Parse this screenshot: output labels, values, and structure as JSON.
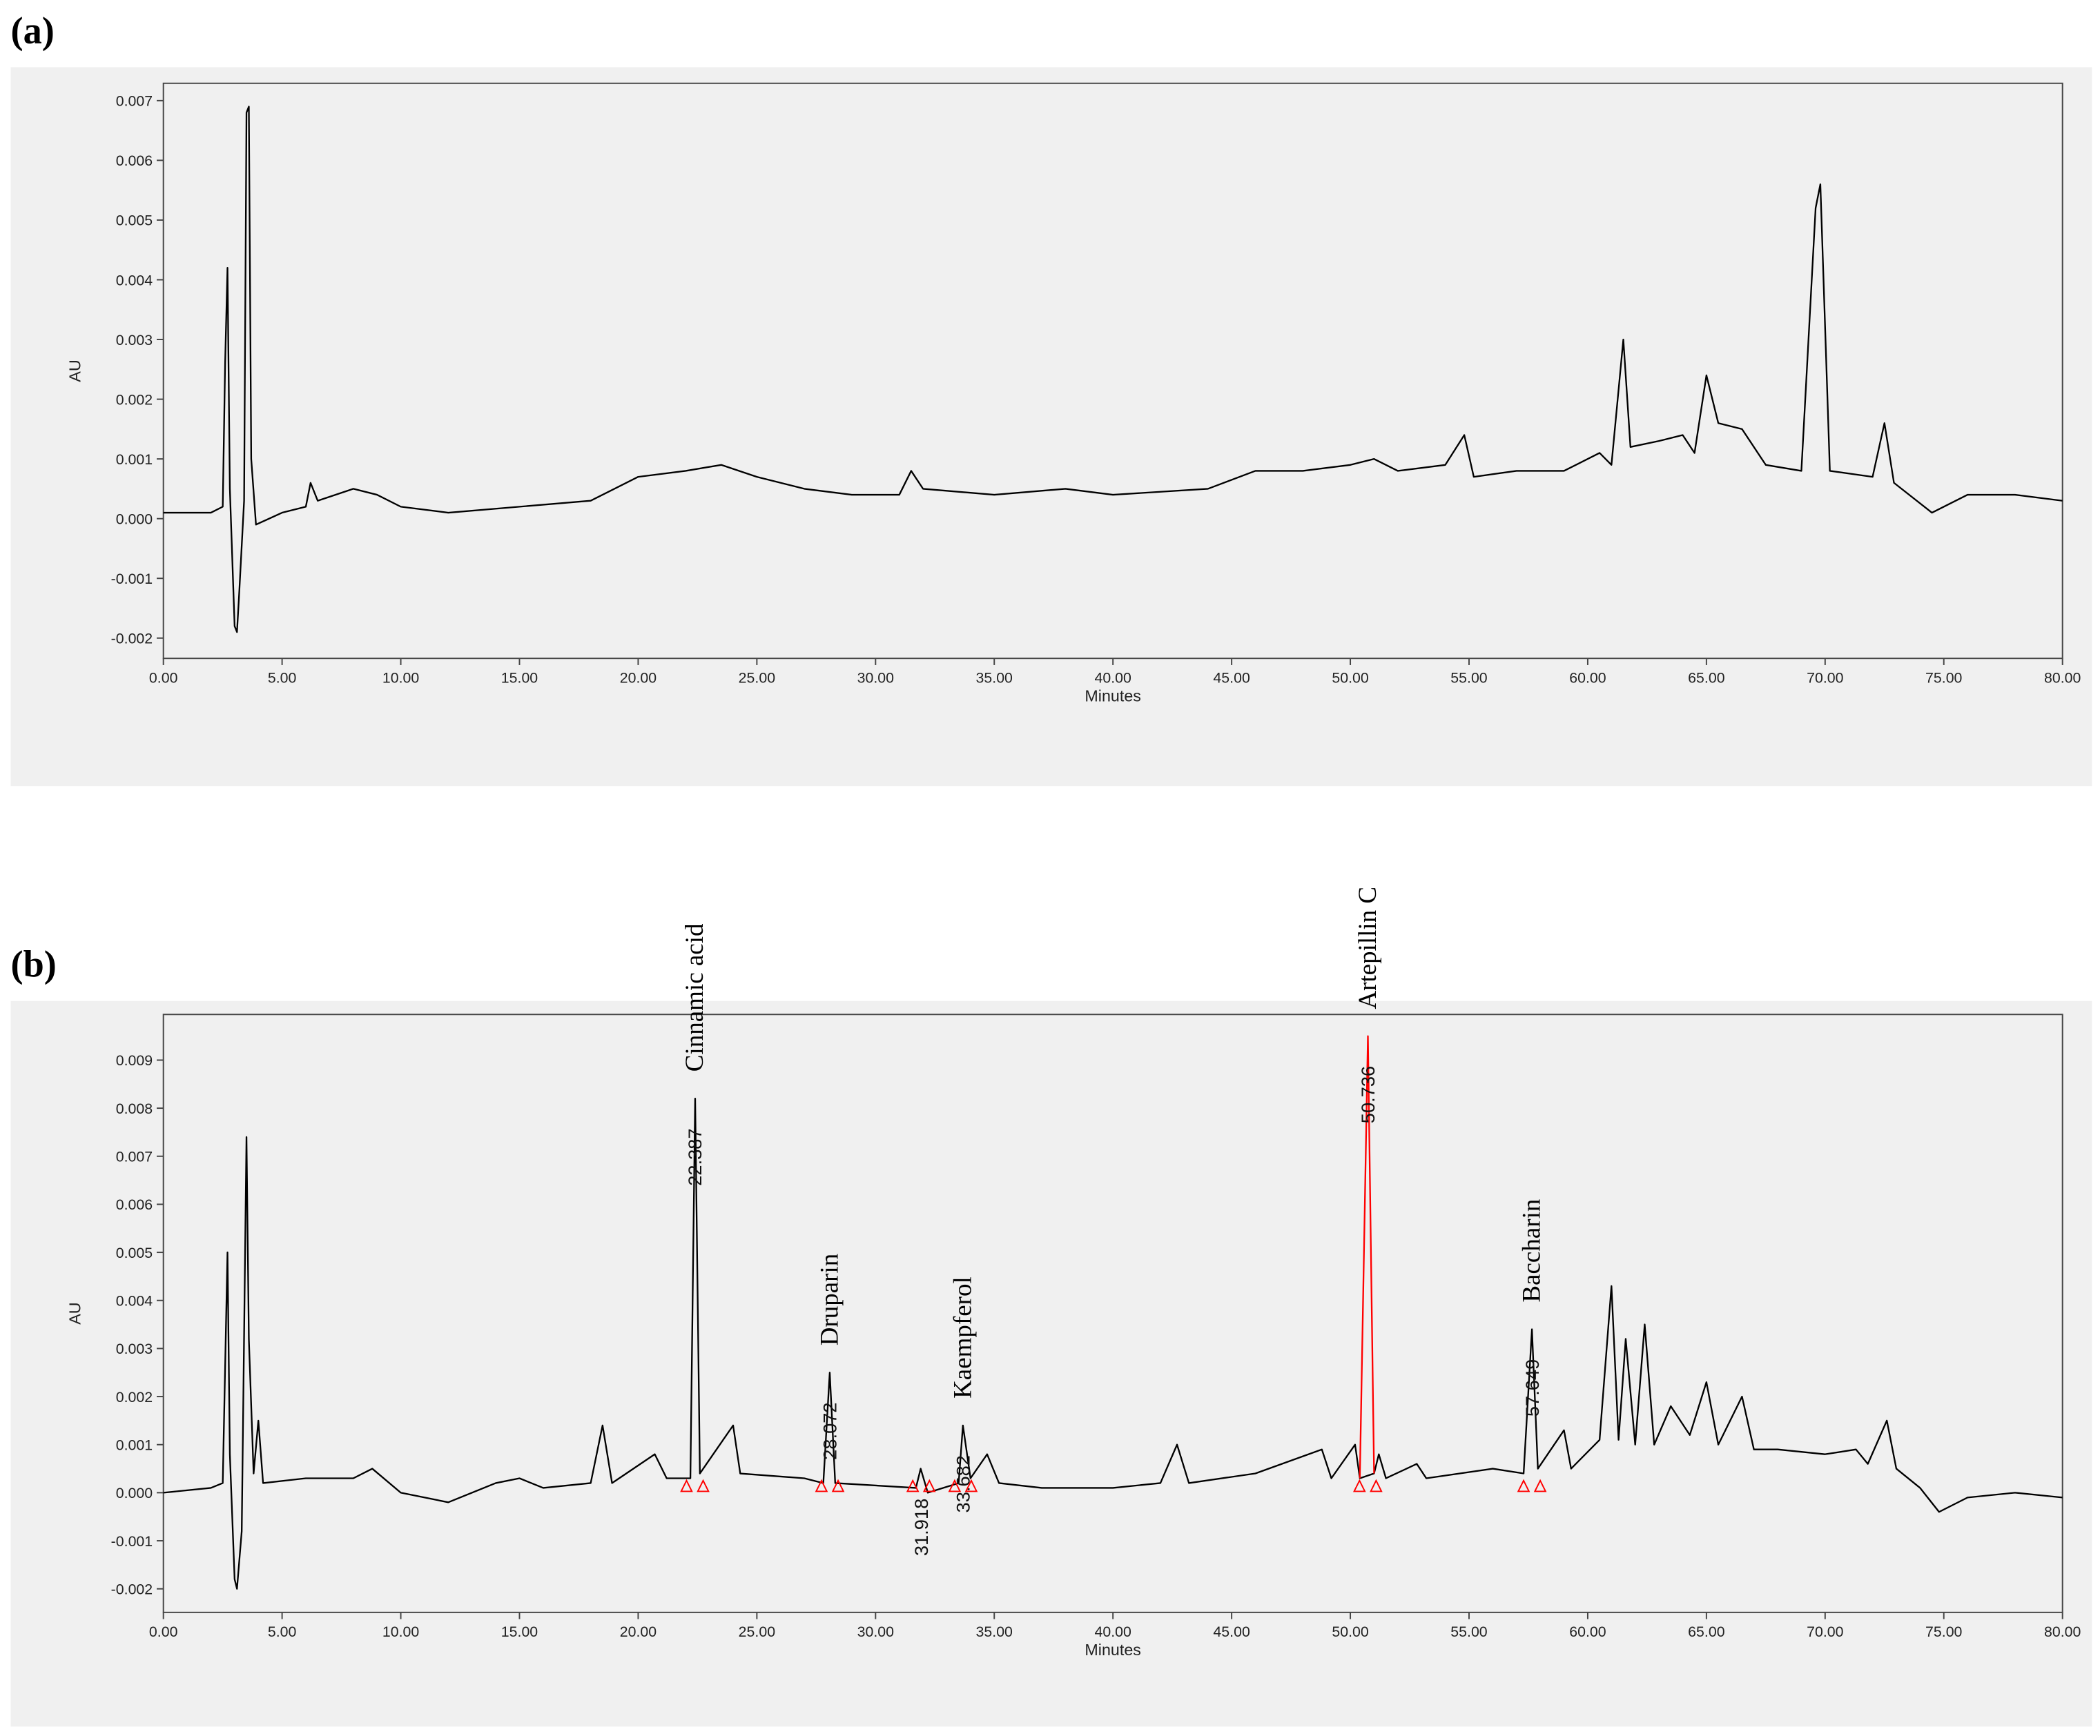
{
  "chart_data": [
    {
      "type": "line",
      "panel_label": "(a)",
      "x_label": "Minutes",
      "y_label": "AU",
      "xlim": [
        0,
        80
      ],
      "ylim": [
        -0.00234,
        0.00729
      ],
      "xticks": [
        {
          "value": 0,
          "label": "0.00"
        },
        {
          "value": 5,
          "label": "5.00"
        },
        {
          "value": 10,
          "label": "10.00"
        },
        {
          "value": 15,
          "label": "15.00"
        },
        {
          "value": 20,
          "label": "20.00"
        },
        {
          "value": 25,
          "label": "25.00"
        },
        {
          "value": 30,
          "label": "30.00"
        },
        {
          "value": 35,
          "label": "35.00"
        },
        {
          "value": 40,
          "label": "40.00"
        },
        {
          "value": 45,
          "label": "45.00"
        },
        {
          "value": 50,
          "label": "50.00"
        },
        {
          "value": 55,
          "label": "55.00"
        },
        {
          "value": 60,
          "label": "60.00"
        },
        {
          "value": 65,
          "label": "65.00"
        },
        {
          "value": 70,
          "label": "70.00"
        },
        {
          "value": 75,
          "label": "75.00"
        },
        {
          "value": 80,
          "label": "80.00"
        }
      ],
      "yticks": [
        -0.002,
        -0.001,
        {
          "value": 0,
          "label": "0.000"
        },
        0.001,
        0.002,
        0.003,
        0.004,
        0.005,
        0.006,
        0.007
      ],
      "series": [
        {
          "color": "#000000",
          "x": [
            0,
            1,
            2,
            2.5,
            2.6,
            2.7,
            2.8,
            3.0,
            3.1,
            3.2,
            3.4,
            3.5,
            3.6,
            3.7,
            3.9,
            5,
            6,
            6.2,
            6.5,
            8,
            9,
            10,
            12,
            15,
            18,
            20,
            22,
            23.5,
            25,
            27,
            29,
            31,
            31.5,
            32,
            35,
            38,
            40,
            44,
            46,
            48,
            50,
            51,
            52,
            54,
            54.8,
            55.2,
            57,
            59,
            60.5,
            61,
            61.5,
            61.8,
            63,
            64,
            64.5,
            65,
            65.5,
            66.5,
            67.5,
            69,
            69.6,
            69.8,
            70.2,
            72,
            72.5,
            72.9,
            74.5,
            76,
            78,
            80
          ],
          "values": [
            0.0001,
            0.0001,
            0.0001,
            0.0002,
            0.0026,
            0.0042,
            0.0005,
            -0.0018,
            -0.0019,
            -0.0012,
            0.0003,
            0.0068,
            0.0069,
            0.001,
            -0.0001,
            0.0001,
            0.0002,
            0.0006,
            0.0003,
            0.0005,
            0.0004,
            0.0002,
            0.0001,
            0.0002,
            0.0003,
            0.0007,
            0.0008,
            0.0009,
            0.0007,
            0.0005,
            0.0004,
            0.0004,
            0.0008,
            0.0005,
            0.0004,
            0.0005,
            0.0004,
            0.0005,
            0.0008,
            0.0008,
            0.0009,
            0.001,
            0.0008,
            0.0009,
            0.0014,
            0.0007,
            0.0008,
            0.0008,
            0.0011,
            0.0009,
            0.003,
            0.0012,
            0.0013,
            0.0014,
            0.0011,
            0.0024,
            0.0016,
            0.0015,
            0.0009,
            0.0008,
            0.0052,
            0.0056,
            0.0008,
            0.0007,
            0.0016,
            0.0006,
            0.0001,
            0.0004,
            0.0004,
            0.0003
          ]
        }
      ]
    },
    {
      "type": "line",
      "panel_label": "(b)",
      "x_label": "Minutes",
      "y_label": "AU",
      "xlim": [
        0,
        80
      ],
      "ylim": [
        -0.00249,
        0.00995
      ],
      "xticks": [
        {
          "value": 0,
          "label": "0.00"
        },
        {
          "value": 5,
          "label": "5.00"
        },
        {
          "value": 10,
          "label": "10.00"
        },
        {
          "value": 15,
          "label": "15.00"
        },
        {
          "value": 20,
          "label": "20.00"
        },
        {
          "value": 25,
          "label": "25.00"
        },
        {
          "value": 30,
          "label": "30.00"
        },
        {
          "value": 35,
          "label": "35.00"
        },
        {
          "value": 40,
          "label": "40.00"
        },
        {
          "value": 45,
          "label": "45.00"
        },
        {
          "value": 50,
          "label": "50.00"
        },
        {
          "value": 55,
          "label": "55.00"
        },
        {
          "value": 60,
          "label": "60.00"
        },
        {
          "value": 65,
          "label": "65.00"
        },
        {
          "value": 70,
          "label": "70.00"
        },
        {
          "value": 75,
          "label": "75.00"
        },
        {
          "value": 80,
          "label": "80.00"
        }
      ],
      "yticks": [
        -0.002,
        -0.001,
        {
          "value": 0,
          "label": "0.000"
        },
        0.001,
        0.002,
        0.003,
        0.004,
        0.005,
        0.006,
        0.007,
        0.008,
        0.009
      ],
      "series": [
        {
          "color": "#000000",
          "x": [
            0,
            2,
            2.5,
            2.7,
            2.8,
            3.0,
            3.1,
            3.3,
            3.5,
            3.6,
            3.8,
            4,
            4.2,
            6,
            8,
            8.8,
            10,
            12,
            14,
            15,
            16,
            18,
            18.5,
            18.9,
            20.7,
            21.2,
            22.2,
            22.4,
            22.6,
            23.3,
            24,
            24.3,
            27,
            27.8,
            28.07,
            28.3,
            31.7,
            31.9,
            32.2,
            33.5,
            33.68,
            34,
            34.7,
            35.2,
            37,
            40,
            42,
            42.7,
            43.2,
            46,
            48.8,
            49.2,
            50.2,
            50.4,
            51,
            51.2,
            51.5,
            52.8,
            53.2,
            56,
            57.3,
            57.65,
            57.9,
            59,
            59.3,
            60.5,
            61,
            61.3,
            61.6,
            62,
            62.4,
            62.8,
            63.5,
            64.3,
            65,
            65.5,
            66.5,
            67,
            68,
            70,
            71.3,
            71.8,
            72.6,
            73,
            74,
            74.8,
            76,
            78,
            80
          ],
          "values": [
            0,
            0.0001,
            0.0002,
            0.005,
            0.0008,
            -0.0018,
            -0.002,
            -0.0008,
            0.0074,
            0.0032,
            0.0004,
            0.0015,
            0.0002,
            0.0003,
            0.0003,
            0.0005,
            0,
            -0.0002,
            0.0002,
            0.0003,
            0.0001,
            0.0002,
            0.0014,
            0.0002,
            0.0008,
            0.0003,
            0.0003,
            0.0082,
            0.0004,
            0.0009,
            0.0014,
            0.0004,
            0.0003,
            0.0002,
            0.0025,
            0.0002,
            0.0001,
            0.0005,
            0,
            0.0002,
            0.0014,
            0.0003,
            0.0008,
            0.0002,
            0.0001,
            0.0001,
            0.0002,
            0.001,
            0.0002,
            0.0004,
            0.0009,
            0.0003,
            0.001,
            0.0003,
            0.0004,
            0.0008,
            0.0003,
            0.0006,
            0.0003,
            0.0005,
            0.0004,
            0.0034,
            0.0005,
            0.0013,
            0.0005,
            0.0011,
            0.0043,
            0.0011,
            0.0032,
            0.001,
            0.0035,
            0.001,
            0.0018,
            0.0012,
            0.0023,
            0.001,
            0.002,
            0.0009,
            0.0009,
            0.0008,
            0.0009,
            0.0006,
            0.0015,
            0.0005,
            0.0001,
            -0.0004,
            -0.0001,
            0,
            -0.0001
          ]
        },
        {
          "color": "#ff0000",
          "x": [
            50.4,
            50.74,
            51
          ],
          "values": [
            0.0003,
            0.0095,
            0.0004
          ]
        }
      ],
      "annotations": [
        {
          "x": 22.387,
          "name": "Cinnamic acid"
        },
        {
          "x": 28.072,
          "name": "Druparin"
        },
        {
          "x": 31.918
        },
        {
          "x": 33.682,
          "name": "Kaempferol"
        },
        {
          "x": 50.736,
          "name": "Artepillin C"
        },
        {
          "x": 57.649,
          "name": "Baccharin"
        }
      ]
    }
  ]
}
